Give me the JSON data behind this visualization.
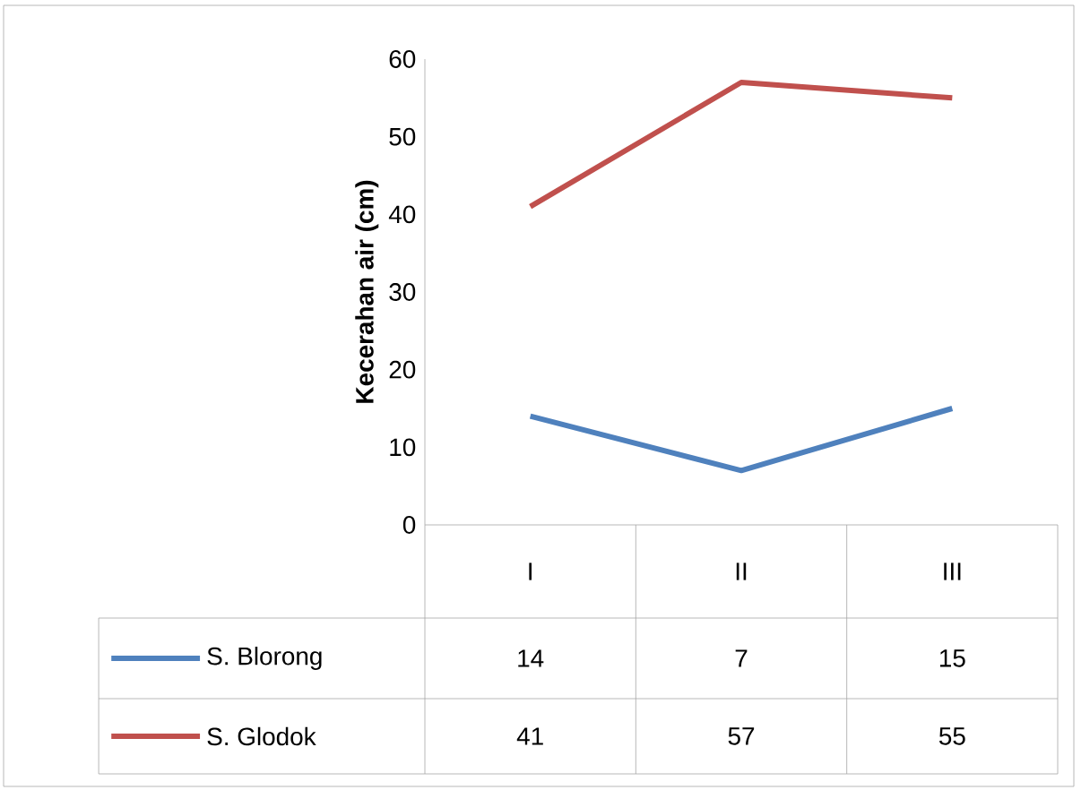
{
  "chart_data": {
    "type": "line",
    "ylabel": "Kecerahan air (cm)",
    "categories": [
      "I",
      "II",
      "III"
    ],
    "series": [
      {
        "name": "S. Blorong",
        "color": "#4f81bd",
        "values": [
          14,
          7,
          15
        ]
      },
      {
        "name": "S. Glodok",
        "color": "#c0504d",
        "values": [
          41,
          57,
          55
        ]
      }
    ],
    "ylim": [
      0,
      60
    ],
    "yticks": [
      0,
      10,
      20,
      30,
      40,
      50,
      60
    ],
    "data_labels": true,
    "legend": "bottom",
    "grid": false
  }
}
